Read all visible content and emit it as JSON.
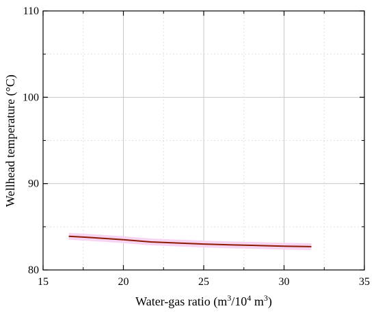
{
  "chart_data": {
    "type": "line",
    "title": "",
    "xlabel": {
      "prefix": "Water-gas ratio (m",
      "sup1": "3",
      "mid": "/10",
      "sup2": "4",
      "mid2": " m",
      "sup3": "3",
      "suffix": ")"
    },
    "ylabel": "Wellhead temperature (°C)",
    "xlim": [
      15,
      35
    ],
    "ylim": [
      80,
      110
    ],
    "xticks": [
      15,
      20,
      25,
      30,
      35
    ],
    "yticks": [
      80,
      90,
      100,
      110
    ],
    "grid": true,
    "series": [
      {
        "color": "#8b1a00",
        "band_color": "#f7d4f2",
        "x": [
          16.6,
          18.0,
          20.0,
          21.7,
          23.0,
          25.0,
          26.8,
          28.0,
          30.0,
          31.7
        ],
        "y": [
          83.9,
          83.75,
          83.5,
          83.25,
          83.15,
          83.0,
          82.9,
          82.85,
          82.75,
          82.7
        ]
      }
    ]
  }
}
